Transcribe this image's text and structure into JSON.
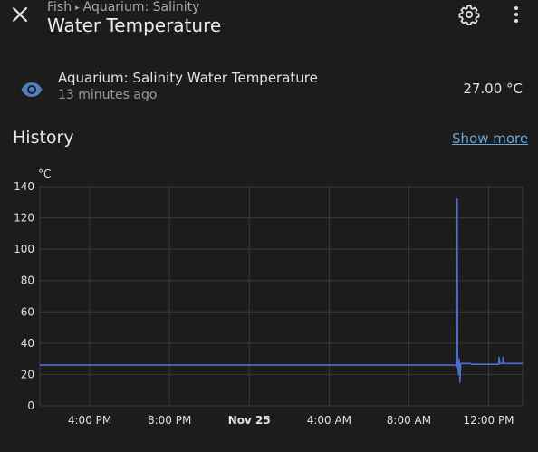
{
  "header": {
    "breadcrumb_parent": "Fish",
    "breadcrumb_separator": "▸",
    "breadcrumb_child": "Aquarium: Salinity",
    "title": "Water Temperature",
    "close_icon": "close-icon",
    "settings_icon": "gear-icon",
    "menu_icon": "more-vertical-icon"
  },
  "entity": {
    "icon": "eye-icon",
    "name": "Aquarium: Salinity Water Temperature",
    "last_changed": "13 minutes ago",
    "state": "27.00 °C"
  },
  "history": {
    "title": "History",
    "show_more": "Show more"
  },
  "colors": {
    "background": "#1c1c1c",
    "line": "#4a6fd1",
    "link": "#6aa6d6",
    "icon": "#4f7ec2"
  },
  "chart_data": {
    "type": "line",
    "ylabel": "°C",
    "ylim": [
      0,
      140
    ],
    "yticks": [
      0,
      20,
      40,
      60,
      80,
      100,
      120,
      140
    ],
    "xlabels": [
      "4:00 PM",
      "8:00 PM",
      "Nov 25",
      "4:00 AM",
      "8:00 AM",
      "12:00 PM"
    ],
    "xlabel_bold_index": 2,
    "x_start_hours": -2.5,
    "x_end_hours": 21.7,
    "xtick_hours": [
      0,
      4,
      8,
      12,
      16,
      20
    ],
    "grid": true,
    "series": [
      {
        "points": [
          [
            -2.5,
            26
          ],
          [
            18.4,
            26
          ],
          [
            18.4,
            25
          ],
          [
            18.42,
            132
          ],
          [
            18.44,
            27
          ],
          [
            18.5,
            20
          ],
          [
            18.52,
            30
          ],
          [
            18.56,
            15
          ],
          [
            18.6,
            27
          ],
          [
            19.1,
            27
          ],
          [
            19.12,
            26.5
          ],
          [
            20.5,
            26.5
          ],
          [
            20.52,
            31
          ],
          [
            20.56,
            27
          ],
          [
            20.7,
            27
          ],
          [
            20.72,
            31
          ],
          [
            20.76,
            27
          ],
          [
            21.7,
            27
          ]
        ]
      }
    ]
  }
}
